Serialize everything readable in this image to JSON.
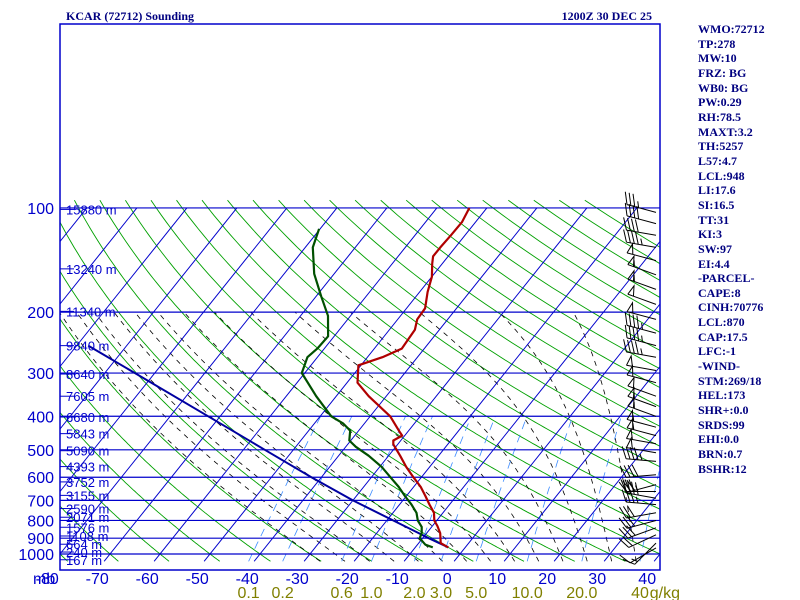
{
  "title": "KCAR (72712) Sounding",
  "valid_time": "1200Z 30 DEC 25",
  "colors": {
    "grid": "#0000cc",
    "isotherm": "#0000cc",
    "dry_adiabat": "#00a000",
    "moist_adiabat": "#000000",
    "mixing_ratio": "#3c8cff",
    "temperature": "#b00000",
    "dewpoint": "#005000",
    "parcel": "#0000a0",
    "wind_barb": "#000000",
    "text": "#000080",
    "mixing_ratio_labels": "#808000"
  },
  "side_panel": [
    "WMO:72712",
    "TP:278",
    "MW:10",
    "FRZ: BG",
    "WB0: BG",
    "PW:0.29",
    "RH:78.5",
    "MAXT:3.2",
    "TH:5257",
    "L57:4.7",
    "LCL:948",
    "LI:17.6",
    "SI:16.5",
    "TT:31",
    "KI:3",
    "SW:97",
    "EI:4.4",
    "-PARCEL-",
    "CAPE:8",
    "CINH:70776",
    "LCL:870",
    "CAP:17.5",
    "LFC:-1",
    "-WIND-",
    "STM:269/18",
    "HEL:173",
    "SHR+:0.0",
    "SRDS:99",
    "EHI:0.0",
    "BRN:0.7",
    "BSHR:12"
  ],
  "chart_data": {
    "type": "skew-t",
    "title": "KCAR (72712) Sounding",
    "valid_time": "1200Z 30 DEC 25",
    "ylabel": "mb",
    "pressure_ticks": [
      "100",
      "200",
      "300",
      "400",
      "500",
      "600",
      "700",
      "800",
      "900",
      "1000"
    ],
    "pressure_tick_values": [
      100,
      200,
      300,
      400,
      500,
      600,
      700,
      800,
      900,
      1000
    ],
    "temperature_ticks": [
      "-80",
      "-70",
      "-60",
      "-50",
      "-40",
      "-30",
      "-20",
      "-10",
      "0",
      "10",
      "20",
      "30",
      "40"
    ],
    "temperature_tick_values": [
      -80,
      -70,
      -60,
      -50,
      -40,
      -30,
      -20,
      -10,
      0,
      10,
      20,
      30,
      40
    ],
    "ylim_mb": [
      1050,
      100
    ],
    "xlim_c": [
      -80,
      40
    ],
    "height_labels": [
      {
        "p": 101,
        "text": "15880 m"
      },
      {
        "p": 150,
        "text": "13240 m"
      },
      {
        "p": 199,
        "text": "11340 m"
      },
      {
        "p": 250,
        "text": "9840 m"
      },
      {
        "p": 302,
        "text": "8640 m"
      },
      {
        "p": 350,
        "text": "7605 m"
      },
      {
        "p": 402,
        "text": "6680 m"
      },
      {
        "p": 449,
        "text": "5843 m"
      },
      {
        "p": 503,
        "text": "5090 m"
      },
      {
        "p": 559,
        "text": "4393 m"
      },
      {
        "p": 619,
        "text": "3752 m"
      },
      {
        "p": 677,
        "text": "3155 m"
      },
      {
        "p": 739,
        "text": "2590 m"
      },
      {
        "p": 783,
        "text": "2071 m"
      },
      {
        "p": 837,
        "text": "1576 m"
      },
      {
        "p": 887,
        "text": "1108 m"
      },
      {
        "p": 937,
        "text": "664 m"
      },
      {
        "p": 987,
        "text": "240 m"
      },
      {
        "p": 1039,
        "text": "167 m"
      }
    ],
    "mixing_ratio_labels": [
      "0.1",
      "0.2",
      "0.6",
      "1.0",
      "2.0",
      "3.0",
      "5.0",
      "10.0",
      "20.0",
      "40",
      "g/kg"
    ],
    "mixing_ratio_values_gkg": [
      0.1,
      0.2,
      0.6,
      1.0,
      2.0,
      3.0,
      5.0,
      10.0,
      20.0,
      40
    ],
    "dry_adiabat_potential_temps_c": [
      -80,
      -70,
      -60,
      -50,
      -40,
      -30,
      -20,
      -10,
      0,
      10,
      20,
      30,
      40,
      50,
      60,
      70,
      80,
      90,
      100,
      110,
      120,
      130,
      140,
      150,
      160,
      170,
      180,
      190,
      200
    ],
    "moist_adiabat_temps_c": [
      -30,
      -25,
      -20,
      -15,
      -10,
      -5,
      0,
      5,
      10,
      15,
      20,
      25,
      30,
      35
    ],
    "temperature_profile": [
      {
        "p": 957,
        "t": -3.4
      },
      {
        "p": 930,
        "t": -5.6
      },
      {
        "p": 870,
        "t": -7.3
      },
      {
        "p": 830,
        "t": -9.0
      },
      {
        "p": 800,
        "t": -10.5
      },
      {
        "p": 760,
        "t": -11.8
      },
      {
        "p": 720,
        "t": -14.0
      },
      {
        "p": 680,
        "t": -16.2
      },
      {
        "p": 640,
        "t": -18.6
      },
      {
        "p": 600,
        "t": -21.6
      },
      {
        "p": 560,
        "t": -24.7
      },
      {
        "p": 520,
        "t": -27.7
      },
      {
        "p": 482,
        "t": -30.9
      },
      {
        "p": 470,
        "t": -31.5
      },
      {
        "p": 455,
        "t": -30.5
      },
      {
        "p": 445,
        "t": -31.5
      },
      {
        "p": 400,
        "t": -36.0
      },
      {
        "p": 350,
        "t": -43.5
      },
      {
        "p": 320,
        "t": -47.9
      },
      {
        "p": 285,
        "t": -50.5
      },
      {
        "p": 270,
        "t": -47.0
      },
      {
        "p": 255,
        "t": -44.5
      },
      {
        "p": 240,
        "t": -44.7
      },
      {
        "p": 225,
        "t": -44.9
      },
      {
        "p": 210,
        "t": -46.1
      },
      {
        "p": 195,
        "t": -46.3
      },
      {
        "p": 175,
        "t": -48.4
      },
      {
        "p": 158,
        "t": -50.0
      },
      {
        "p": 145,
        "t": -52.0
      },
      {
        "p": 138,
        "t": -53.0
      },
      {
        "p": 130,
        "t": -53.0
      },
      {
        "p": 120,
        "t": -52.8
      },
      {
        "p": 110,
        "t": -52.7
      },
      {
        "p": 100,
        "t": -53.5
      }
    ],
    "dewpoint_profile": [
      {
        "p": 957,
        "t": -6.5
      },
      {
        "p": 940,
        "t": -8.4
      },
      {
        "p": 900,
        "t": -10.6
      },
      {
        "p": 870,
        "t": -11.0
      },
      {
        "p": 835,
        "t": -12.0
      },
      {
        "p": 800,
        "t": -13.8
      },
      {
        "p": 760,
        "t": -15.3
      },
      {
        "p": 720,
        "t": -17.6
      },
      {
        "p": 680,
        "t": -20.3
      },
      {
        "p": 640,
        "t": -23.0
      },
      {
        "p": 600,
        "t": -26.2
      },
      {
        "p": 560,
        "t": -29.6
      },
      {
        "p": 520,
        "t": -34.0
      },
      {
        "p": 490,
        "t": -38.0
      },
      {
        "p": 470,
        "t": -40.3
      },
      {
        "p": 440,
        "t": -41.7
      },
      {
        "p": 420,
        "t": -44.2
      },
      {
        "p": 400,
        "t": -47.8
      },
      {
        "p": 350,
        "t": -54.0
      },
      {
        "p": 300,
        "t": -60.6
      },
      {
        "p": 270,
        "t": -62.0
      },
      {
        "p": 255,
        "t": -61.4
      },
      {
        "p": 235,
        "t": -61.2
      },
      {
        "p": 205,
        "t": -64.5
      },
      {
        "p": 180,
        "t": -69.0
      },
      {
        "p": 155,
        "t": -74.0
      },
      {
        "p": 130,
        "t": -78.5
      },
      {
        "p": 115,
        "t": -80.2
      }
    ],
    "parcel_profile": [
      {
        "p": 957,
        "t": -3.4
      },
      {
        "p": 900,
        "t": -8.8
      },
      {
        "p": 870,
        "t": -11.6
      },
      {
        "p": 800,
        "t": -18.7
      },
      {
        "p": 700,
        "t": -30.0
      },
      {
        "p": 600,
        "t": -42.0
      },
      {
        "p": 500,
        "t": -55.7
      },
      {
        "p": 400,
        "t": -72.4
      },
      {
        "p": 300,
        "t": -94.0
      },
      {
        "p": 250,
        "t": -107.7
      }
    ],
    "wind_barbs": [
      {
        "p": 960,
        "dir": 240,
        "spd": 10
      },
      {
        "p": 930,
        "dir": 225,
        "spd": 15
      },
      {
        "p": 880,
        "dir": 245,
        "spd": 20
      },
      {
        "p": 840,
        "dir": 250,
        "spd": 30
      },
      {
        "p": 800,
        "dir": 255,
        "spd": 30
      },
      {
        "p": 760,
        "dir": 260,
        "spd": 30
      },
      {
        "p": 720,
        "dir": 275,
        "spd": 35
      },
      {
        "p": 690,
        "dir": 280,
        "spd": 40
      },
      {
        "p": 660,
        "dir": 270,
        "spd": 35
      },
      {
        "p": 630,
        "dir": 255,
        "spd": 30
      },
      {
        "p": 590,
        "dir": 265,
        "spd": 40
      },
      {
        "p": 540,
        "dir": 275,
        "spd": 45
      },
      {
        "p": 510,
        "dir": 280,
        "spd": 50
      },
      {
        "p": 480,
        "dir": 280,
        "spd": 50
      },
      {
        "p": 455,
        "dir": 285,
        "spd": 55
      },
      {
        "p": 430,
        "dir": 285,
        "spd": 55
      },
      {
        "p": 400,
        "dir": 290,
        "spd": 55
      },
      {
        "p": 375,
        "dir": 290,
        "spd": 55
      },
      {
        "p": 350,
        "dir": 290,
        "spd": 50
      },
      {
        "p": 320,
        "dir": 285,
        "spd": 50
      },
      {
        "p": 295,
        "dir": 280,
        "spd": 50
      },
      {
        "p": 270,
        "dir": 280,
        "spd": 45
      },
      {
        "p": 250,
        "dir": 285,
        "spd": 45
      },
      {
        "p": 230,
        "dir": 285,
        "spd": 45
      },
      {
        "p": 210,
        "dir": 285,
        "spd": 50
      },
      {
        "p": 190,
        "dir": 290,
        "spd": 50
      },
      {
        "p": 172,
        "dir": 290,
        "spd": 55
      },
      {
        "p": 156,
        "dir": 290,
        "spd": 55
      },
      {
        "p": 142,
        "dir": 285,
        "spd": 50
      },
      {
        "p": 130,
        "dir": 280,
        "spd": 45
      },
      {
        "p": 120,
        "dir": 280,
        "spd": 40
      },
      {
        "p": 111,
        "dir": 285,
        "spd": 40
      },
      {
        "p": 103,
        "dir": 285,
        "spd": 35
      }
    ]
  }
}
